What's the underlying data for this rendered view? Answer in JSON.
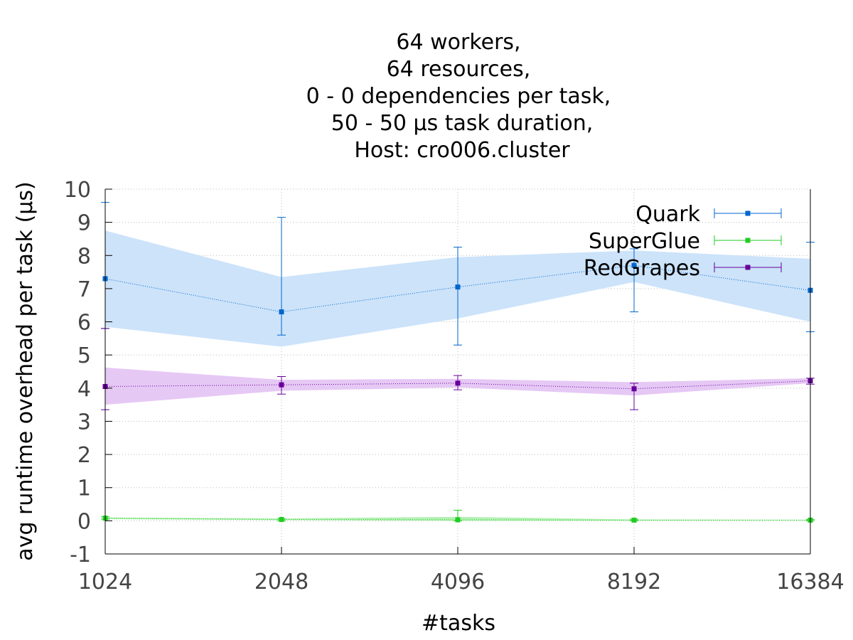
{
  "chart_data": {
    "type": "line",
    "title_lines": [
      "64 workers,",
      "64 resources,",
      "0 - 0 dependencies per task,",
      "50 - 50 µs task duration,",
      "Host: cro006.cluster"
    ],
    "xlabel": "#tasks",
    "ylabel": "avg runtime overhead per task (µs)",
    "x": [
      1024,
      2048,
      4096,
      8192,
      16384
    ],
    "x_scale": "log2",
    "ylim": [
      -1,
      10
    ],
    "yticks": [
      -1,
      0,
      1,
      2,
      3,
      4,
      5,
      6,
      7,
      8,
      9,
      10
    ],
    "grid": true,
    "legend_position": "top-right",
    "series": [
      {
        "name": "Quark",
        "color": "#0066cc",
        "band_color": "#cce3fa",
        "values": [
          7.3,
          6.3,
          7.05,
          7.7,
          6.95
        ],
        "err_low": [
          5.8,
          5.6,
          5.3,
          6.3,
          5.7
        ],
        "err_high": [
          9.6,
          9.15,
          8.25,
          8.2,
          8.4
        ],
        "band_low": [
          5.85,
          5.25,
          6.1,
          7.2,
          6.0
        ],
        "band_high": [
          8.75,
          7.35,
          7.95,
          8.15,
          7.9
        ]
      },
      {
        "name": "SuperGlue",
        "color": "#22cc22",
        "band_color": "#b4f0b4",
        "values": [
          0.08,
          0.04,
          0.03,
          0.02,
          0.02
        ],
        "err_low": [
          0.05,
          0.0,
          0.0,
          0.0,
          0.0
        ],
        "err_high": [
          0.12,
          0.06,
          0.32,
          0.05,
          0.04
        ],
        "band_low": [
          0.05,
          0.02,
          0.0,
          0.0,
          0.01
        ],
        "band_high": [
          0.1,
          0.07,
          0.12,
          0.04,
          0.03
        ]
      },
      {
        "name": "RedGrapes",
        "color": "#660099",
        "band_color": "#e6c8f5",
        "values": [
          4.05,
          4.1,
          4.15,
          3.98,
          4.22
        ],
        "err_low": [
          3.35,
          3.82,
          3.95,
          3.35,
          4.12
        ],
        "err_high": [
          5.8,
          4.35,
          4.38,
          4.15,
          4.3
        ],
        "band_low": [
          3.5,
          3.92,
          4.02,
          3.78,
          4.15
        ],
        "band_high": [
          4.62,
          4.25,
          4.28,
          4.18,
          4.3
        ]
      }
    ]
  }
}
